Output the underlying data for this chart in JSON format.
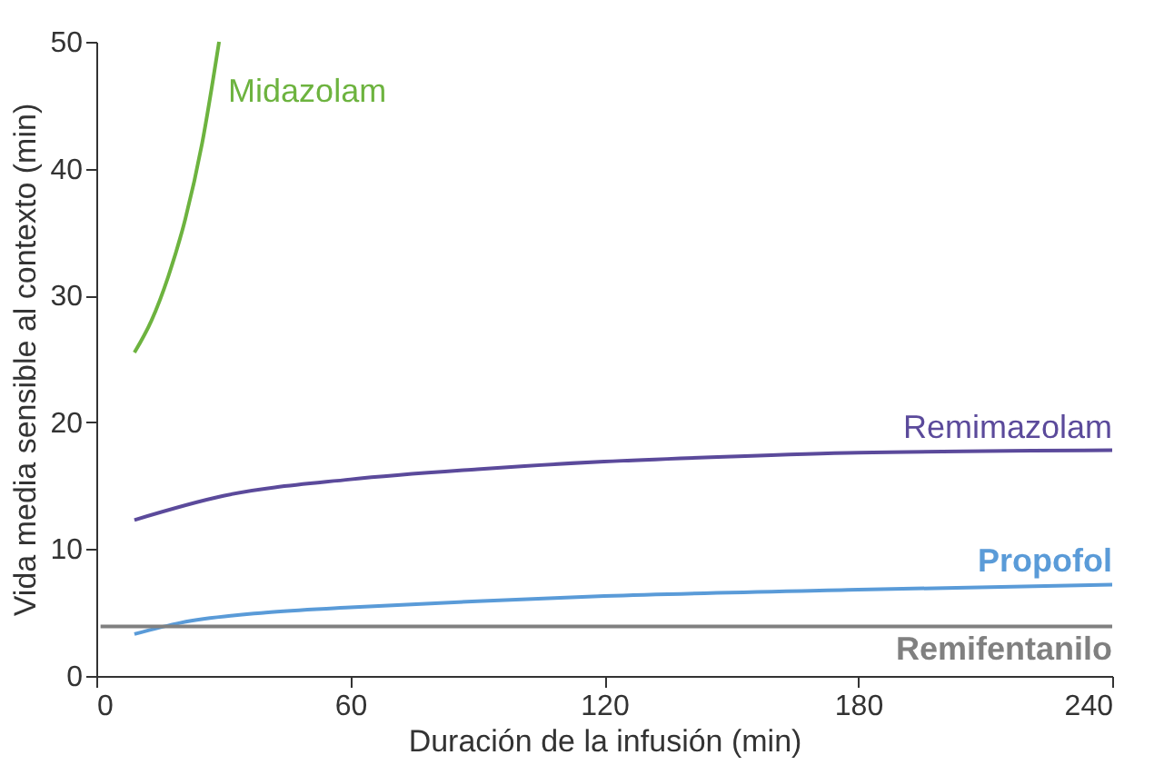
{
  "chart_data": {
    "type": "line",
    "xlabel": "Duración de la infusión (min)",
    "ylabel": "Vida media sensible al contexto (min)",
    "xlim": [
      0,
      240
    ],
    "xticks": [
      0,
      60,
      120,
      180,
      240
    ],
    "ylim": [
      0,
      50
    ],
    "yticks": [
      0,
      10,
      20,
      30,
      40,
      50
    ],
    "grid": false,
    "marker": "none",
    "line_style": "solid",
    "series": [
      {
        "name": "Midazolam",
        "color": "#6db33f",
        "x": [
          9,
          13,
          17,
          21,
          25,
          29
        ],
        "values": [
          25.5,
          28,
          31.5,
          36,
          42,
          50
        ]
      },
      {
        "name": "Remimazolam",
        "color": "#5b4a9b",
        "x": [
          9,
          30,
          60,
          90,
          120,
          150,
          180,
          240
        ],
        "values": [
          12.3,
          14.2,
          15.5,
          16.3,
          16.9,
          17.3,
          17.6,
          17.8
        ]
      },
      {
        "name": "Propofol",
        "color": "#5a9bd8",
        "x": [
          9,
          20,
          40,
          60,
          90,
          120,
          180,
          240
        ],
        "values": [
          3.3,
          4.2,
          5.0,
          5.4,
          5.9,
          6.3,
          6.8,
          7.2
        ]
      },
      {
        "name": "Remifentanilo",
        "color": "#808080",
        "x": [
          1,
          240
        ],
        "values": [
          3.9,
          3.9
        ]
      }
    ]
  }
}
